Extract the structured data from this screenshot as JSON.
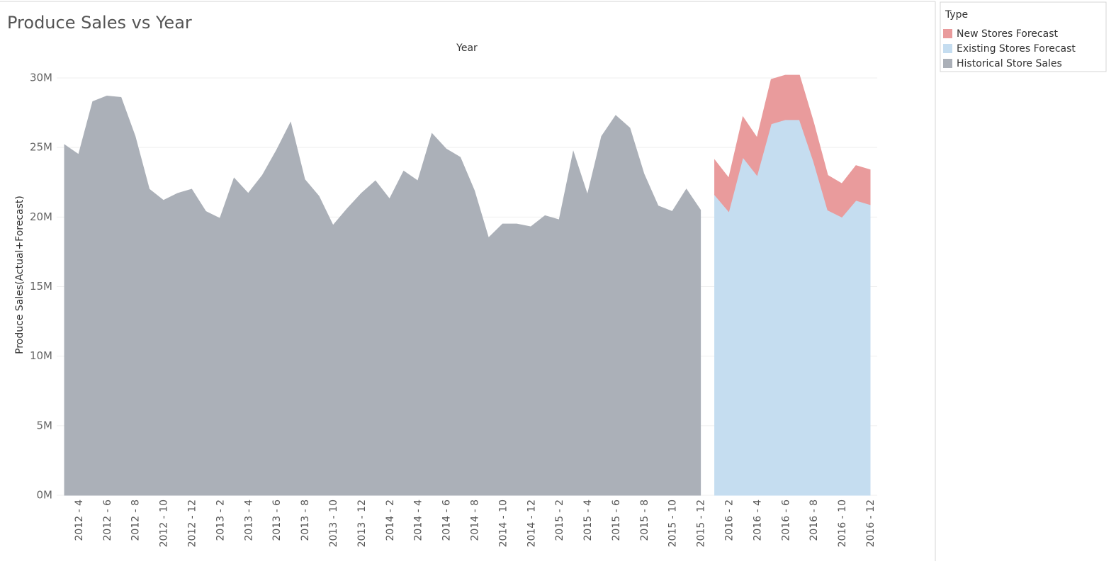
{
  "chart_data": {
    "type": "area",
    "title": "Produce Sales vs Year",
    "x_label": "Year",
    "y_label": "Produce Sales(Actual+Forecast)",
    "legend_title": "Type",
    "legend_position": "right",
    "stacked": true,
    "grid": true,
    "categories": [
      null,
      "2012 - 4",
      null,
      "2012 - 6",
      null,
      "2012 - 8",
      null,
      "2012 - 10",
      null,
      "2012 - 12",
      null,
      "2013 - 2",
      null,
      "2013 - 4",
      null,
      "2013 - 6",
      null,
      "2013 - 8",
      null,
      "2013 - 10",
      null,
      "2013 - 12",
      null,
      "2014 - 2",
      null,
      "2014 - 4",
      null,
      "2014 - 6",
      null,
      "2014 - 8",
      null,
      "2014 - 10",
      null,
      "2014 - 12",
      null,
      "2015 - 2",
      null,
      "2015 - 4",
      null,
      "2015 - 6",
      null,
      "2015 - 8",
      null,
      "2015 - 10",
      null,
      "2015 - 12",
      null,
      "2016 - 2",
      null,
      "2016 - 4",
      null,
      "2016 - 6",
      null,
      "2016 - 8",
      null,
      "2016 - 10",
      null,
      "2016 - 12"
    ],
    "series": [
      {
        "name": "New Stores Forecast",
        "color": "#e99b9c",
        "values": [
          null,
          null,
          null,
          null,
          null,
          null,
          null,
          null,
          null,
          null,
          null,
          null,
          null,
          null,
          null,
          null,
          null,
          null,
          null,
          null,
          null,
          null,
          null,
          null,
          null,
          null,
          null,
          null,
          null,
          null,
          null,
          null,
          null,
          null,
          null,
          null,
          null,
          null,
          null,
          null,
          null,
          null,
          null,
          null,
          null,
          null,
          2500000,
          2400000,
          2900000,
          2700000,
          3200000,
          3200000,
          3200000,
          2800000,
          2500000,
          2400000,
          2500000,
          2500000
        ]
      },
      {
        "name": "Existing Stores Forecast",
        "color": "#c5ddf0",
        "values": [
          null,
          null,
          null,
          null,
          null,
          null,
          null,
          null,
          null,
          null,
          null,
          null,
          null,
          null,
          null,
          null,
          null,
          null,
          null,
          null,
          null,
          null,
          null,
          null,
          null,
          null,
          null,
          null,
          null,
          null,
          null,
          null,
          null,
          null,
          null,
          null,
          null,
          null,
          null,
          null,
          null,
          null,
          null,
          null,
          null,
          null,
          21600000,
          20400000,
          24300000,
          23000000,
          26700000,
          27000000,
          27000000,
          24000000,
          20500000,
          20000000,
          21200000,
          20900000
        ]
      },
      {
        "name": "Historical Store Sales",
        "color": "#abb0b8",
        "values": [
          25200000,
          24500000,
          28300000,
          28700000,
          28600000,
          25800000,
          22000000,
          21200000,
          21700000,
          22000000,
          20400000,
          19900000,
          22800000,
          21700000,
          23000000,
          24800000,
          26800000,
          22700000,
          21500000,
          19400000,
          20600000,
          21700000,
          22600000,
          21300000,
          23300000,
          22600000,
          26000000,
          24900000,
          24300000,
          21900000,
          18500000,
          19500000,
          19500000,
          19300000,
          20100000,
          19800000,
          24700000,
          21600000,
          25800000,
          27300000,
          26400000,
          23100000,
          20800000,
          20400000,
          22000000,
          20500000,
          null,
          null,
          null,
          null,
          null,
          null,
          null,
          null,
          null,
          null,
          null,
          null
        ]
      }
    ],
    "ylim": [
      0,
      30000000
    ],
    "yticks": [
      {
        "value": 0,
        "label": "0M"
      },
      {
        "value": 5000000,
        "label": "5M"
      },
      {
        "value": 10000000,
        "label": "10M"
      },
      {
        "value": 15000000,
        "label": "15M"
      },
      {
        "value": 20000000,
        "label": "20M"
      },
      {
        "value": 25000000,
        "label": "25M"
      },
      {
        "value": 30000000,
        "label": "30M"
      }
    ]
  }
}
